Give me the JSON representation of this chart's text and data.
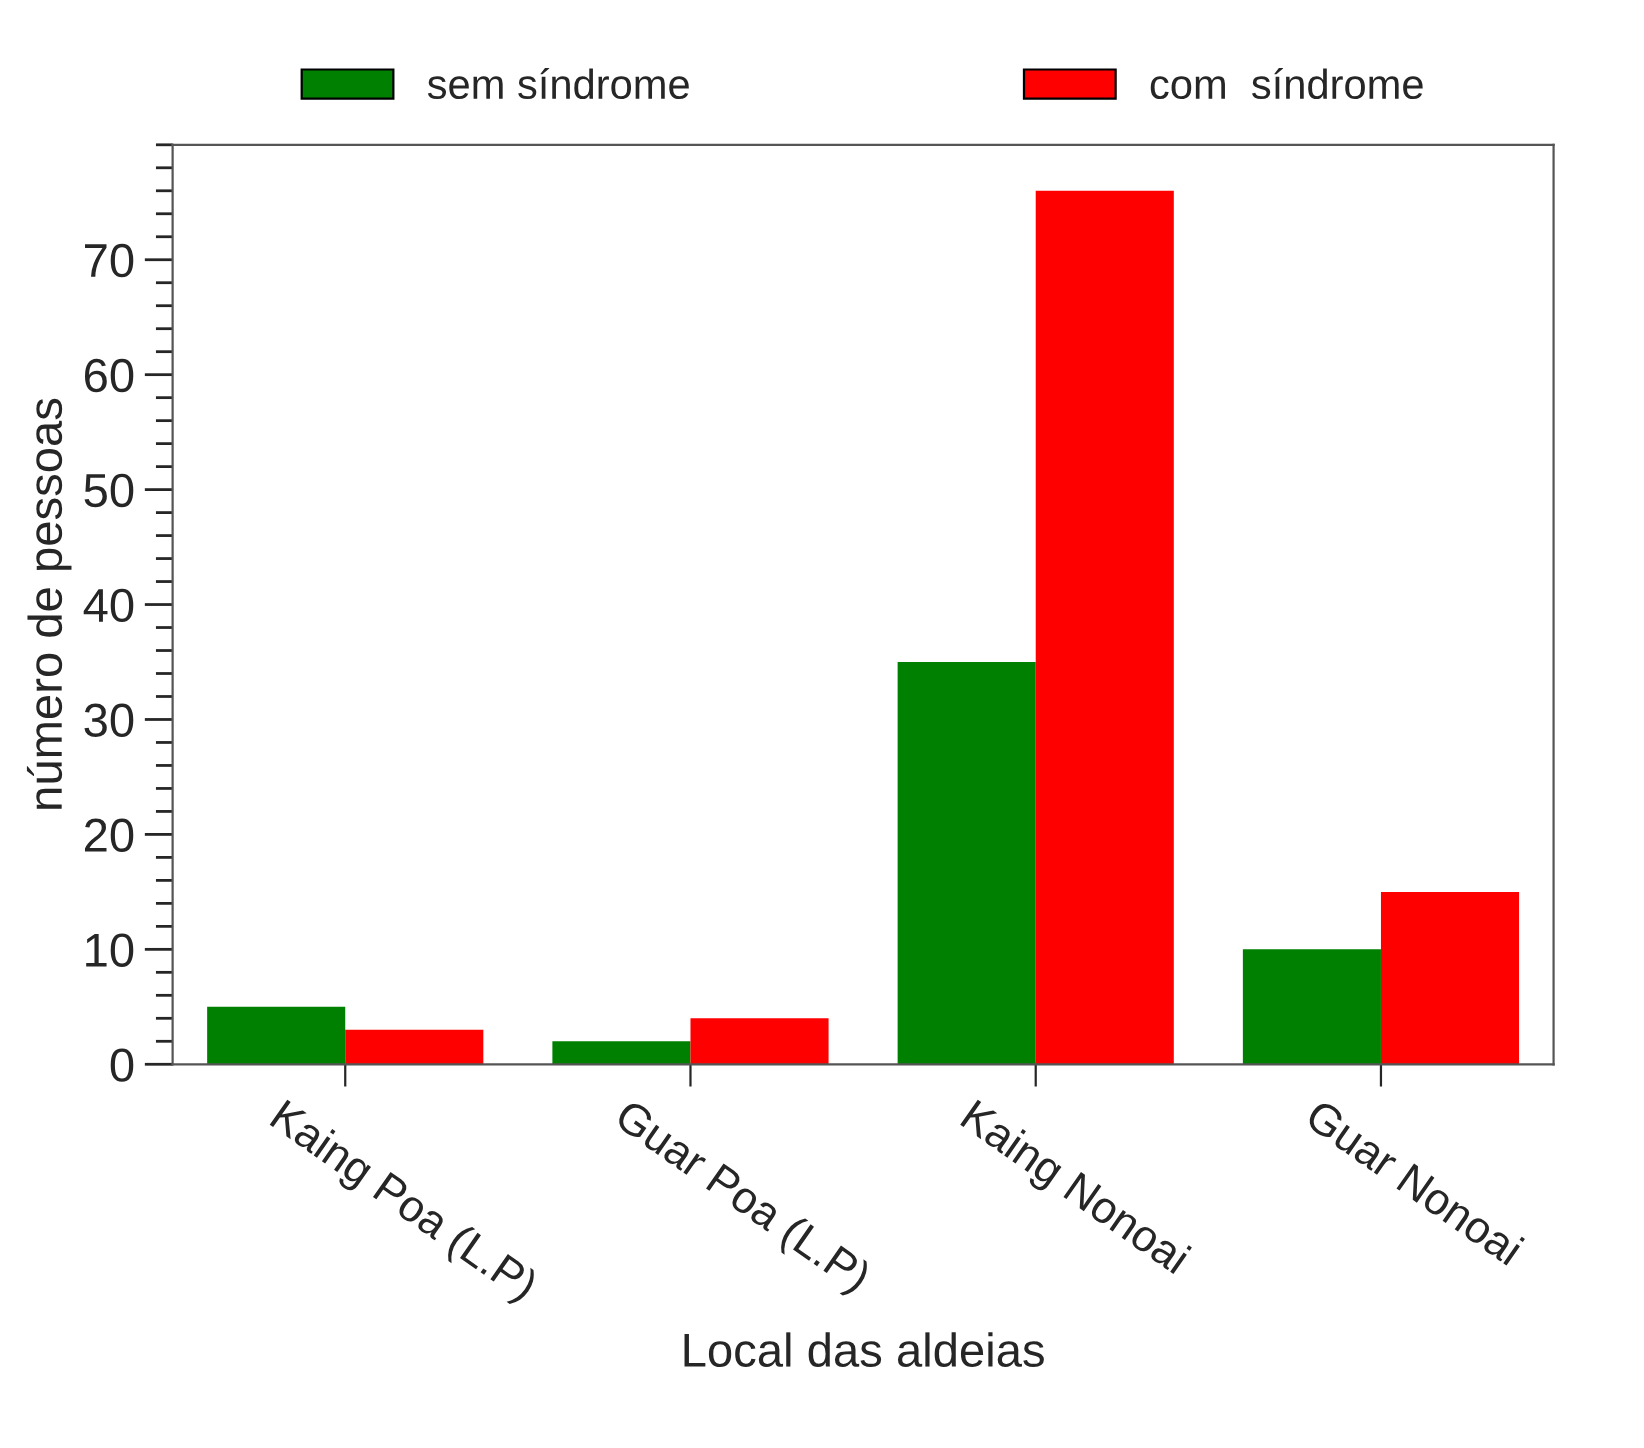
{
  "chart_data": {
    "type": "bar",
    "xlabel": "Local das aldeias",
    "ylabel": "número de pessoas",
    "categories": [
      "Kaing Poa (L.P)",
      "Guar Poa (L.P)",
      "Kaing Nonoai",
      "Guar Nonoai"
    ],
    "series": [
      {
        "name": "sem síndrome",
        "color": "#008000",
        "values": [
          5,
          2,
          35,
          10
        ]
      },
      {
        "name": "com  síndrome",
        "color": "#ff0000",
        "values": [
          3,
          4,
          76,
          15
        ]
      }
    ],
    "ylim": [
      0,
      80
    ],
    "yticks": [
      0,
      10,
      20,
      30,
      40,
      50,
      60,
      70
    ],
    "grid": false,
    "legend": "top"
  }
}
